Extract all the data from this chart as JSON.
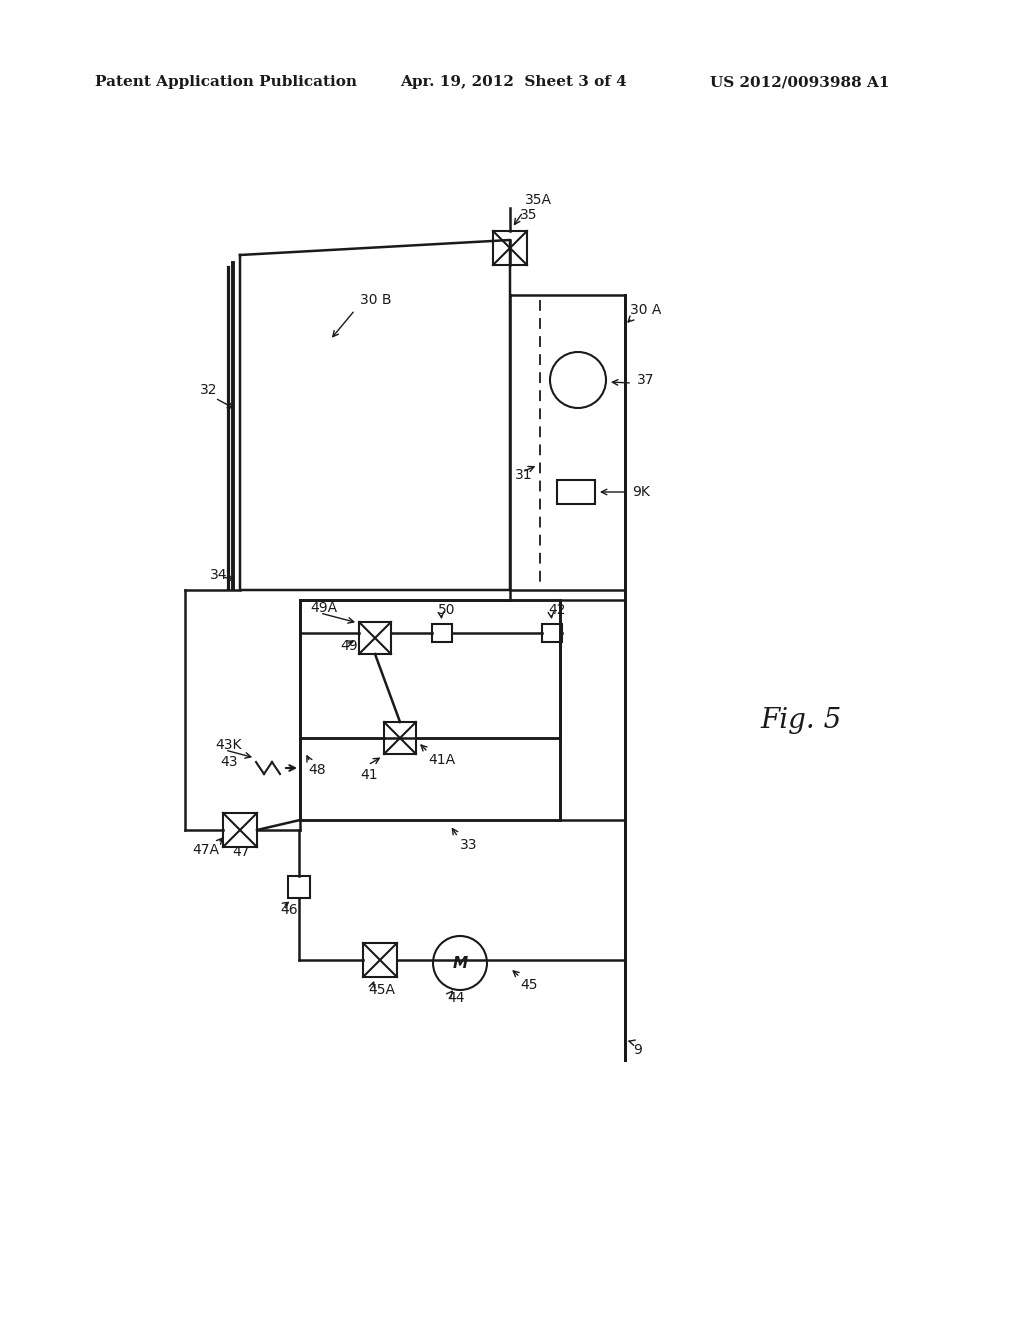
{
  "background_color": "#ffffff",
  "header_left": "Patent Application Publication",
  "header_center": "Apr. 19, 2012  Sheet 3 of 4",
  "header_right": "US 2012/0093988 A1",
  "fig_label": "Fig. 5",
  "line_color": "#1a1a1a",
  "text_color": "#1a1a1a"
}
